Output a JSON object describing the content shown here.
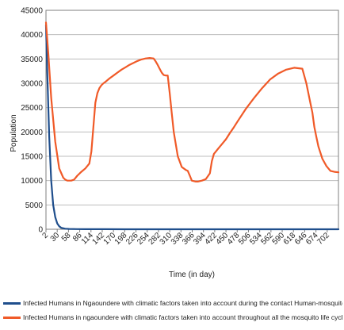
{
  "chart_data": {
    "type": "line",
    "title": "",
    "xlabel": "Time (in day)",
    "ylabel": "Population",
    "ylim": [
      0,
      45000
    ],
    "yticks": [
      0,
      5000,
      10000,
      15000,
      20000,
      25000,
      30000,
      35000,
      40000,
      45000
    ],
    "xlim": [
      2,
      730
    ],
    "xticks": [
      "2",
      "30",
      "58",
      "86",
      "114",
      "142",
      "170",
      "198",
      "226",
      "254",
      "282",
      "310",
      "338",
      "366",
      "394",
      "422",
      "450",
      "478",
      "506",
      "534",
      "562",
      "590",
      "618",
      "646",
      "674",
      "702"
    ],
    "grid": "horizontal",
    "legend": "bottom",
    "series": [
      {
        "name": "Infected Humans in Ngaoundere with climatic factors taken into account during the contact Human-mosquito",
        "color": "#1f4e8c",
        "x": [
          2,
          5,
          10,
          15,
          20,
          25,
          30,
          35,
          40,
          50,
          60,
          80,
          100,
          150,
          200,
          300,
          400,
          500,
          600,
          730
        ],
        "y": [
          42000,
          33000,
          19000,
          10000,
          5000,
          2500,
          1200,
          600,
          300,
          120,
          60,
          30,
          20,
          10,
          5,
          5,
          5,
          5,
          5,
          5
        ]
      },
      {
        "name": "Infected Humans in ngaoundere with climatic factors taken into account throughout all the mosquito life cycle",
        "color": "#f05a28",
        "x": [
          2,
          8,
          15,
          25,
          35,
          45,
          50,
          55,
          65,
          72,
          80,
          90,
          100,
          110,
          115,
          120,
          125,
          130,
          135,
          140,
          145,
          150,
          160,
          170,
          180,
          190,
          200,
          210,
          220,
          230,
          240,
          250,
          260,
          270,
          275,
          280,
          285,
          290,
          295,
          300,
          305,
          310,
          315,
          320,
          330,
          340,
          350,
          355,
          360,
          365,
          370,
          375,
          380,
          385,
          390,
          400,
          410,
          415,
          420,
          425,
          430,
          440,
          450,
          460,
          470,
          480,
          500,
          520,
          540,
          560,
          580,
          600,
          620,
          640,
          650,
          660,
          665,
          670,
          675,
          680,
          690,
          700,
          710,
          720,
          730
        ],
        "y": [
          42500,
          36000,
          27000,
          18000,
          12500,
          10600,
          10200,
          10000,
          10000,
          10200,
          11000,
          11800,
          12500,
          13500,
          16000,
          21000,
          26000,
          28000,
          29000,
          29600,
          30000,
          30300,
          31000,
          31600,
          32200,
          32800,
          33300,
          33800,
          34200,
          34600,
          34900,
          35100,
          35200,
          35100,
          34500,
          33800,
          33000,
          32200,
          31700,
          31600,
          31600,
          28000,
          24000,
          20000,
          15000,
          12800,
          12200,
          12000,
          11000,
          10000,
          9900,
          9800,
          9800,
          9900,
          10000,
          10300,
          11500,
          14000,
          15500,
          16000,
          16500,
          17500,
          18500,
          19800,
          21000,
          22300,
          24800,
          27000,
          29000,
          30800,
          32000,
          32800,
          33200,
          33000,
          30000,
          26000,
          24000,
          21000,
          19000,
          17000,
          14500,
          13000,
          12000,
          11800,
          11700
        ]
      }
    ]
  }
}
